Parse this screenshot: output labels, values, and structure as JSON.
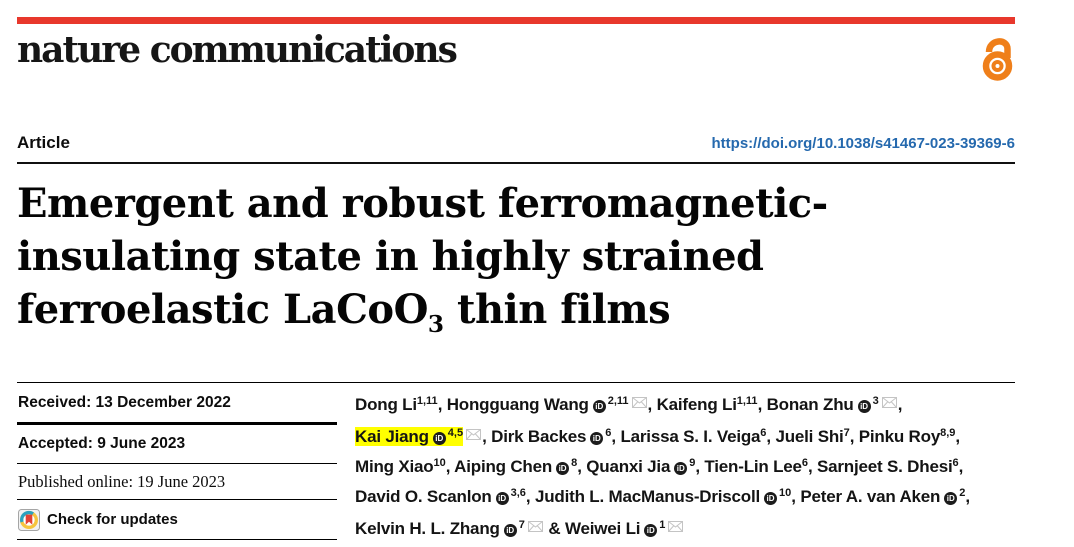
{
  "header": {
    "journal": "nature communications",
    "open_access_icon": "open-padlock",
    "article_label": "Article",
    "doi": "https://doi.org/10.1038/s41467-023-39369-6"
  },
  "title": {
    "line1": "Emergent and robust ferromagnetic-",
    "line2": "insulating state in highly strained",
    "line3_pre": "ferroelastic LaCoO",
    "line3_sub": "3",
    "line3_post": " thin films"
  },
  "dates": {
    "received": "Received: 13 December 2022",
    "accepted": "Accepted: 9 June 2023",
    "published": "Published online: 19 June 2023",
    "check_updates": "Check for updates"
  },
  "colors": {
    "brand_red": "#e8382c",
    "doi_blue": "#2569ae",
    "open_access_orange": "#ef7f1a",
    "highlight_yellow": "#ffff00"
  },
  "authors": {
    "lines": [
      [
        {
          "name": "Dong Li",
          "sup": "1,11",
          "sep": ", "
        },
        {
          "name": "Hongguang Wang",
          "orcid": true,
          "sup": "2,11",
          "mail": true,
          "sep": ", "
        },
        {
          "name": "Kaifeng Li",
          "sup": "1,11",
          "sep": ", "
        },
        {
          "name": "Bonan Zhu",
          "orcid": true,
          "sup": "3",
          "mail": true,
          "sep": ","
        }
      ],
      [
        {
          "name": "Kai Jiang",
          "orcid": true,
          "sup": "4,5",
          "mail": true,
          "highlight": true,
          "sep": ", "
        },
        {
          "name": "Dirk Backes",
          "orcid": true,
          "sup": "6",
          "sep": ", "
        },
        {
          "name": "Larissa S. I. Veiga",
          "sup": "6",
          "sep": ", "
        },
        {
          "name": "Jueli Shi",
          "sup": "7",
          "sep": ", "
        },
        {
          "name": "Pinku Roy",
          "sup": "8,9",
          "sep": ","
        }
      ],
      [
        {
          "name": "Ming Xiao",
          "sup": "10",
          "sep": ", "
        },
        {
          "name": "Aiping Chen",
          "orcid": true,
          "sup": "8",
          "sep": ", "
        },
        {
          "name": "Quanxi Jia",
          "orcid": true,
          "sup": "9",
          "sep": ", "
        },
        {
          "name": "Tien-Lin Lee",
          "sup": "6",
          "sep": ", "
        },
        {
          "name": "Sarnjeet S. Dhesi",
          "sup": "6",
          "sep": ","
        }
      ],
      [
        {
          "name": "David O. Scanlon",
          "orcid": true,
          "sup": "3,6",
          "sep": ", "
        },
        {
          "name": "Judith L. MacManus-Driscoll",
          "orcid": true,
          "sup": "10",
          "sep": ", "
        },
        {
          "name": "Peter A. van Aken",
          "orcid": true,
          "sup": "2",
          "sep": ","
        }
      ],
      [
        {
          "name": "Kelvin H. L. Zhang",
          "orcid": true,
          "sup": "7",
          "mail": true,
          "sep": " & "
        },
        {
          "name": "Weiwei Li",
          "orcid": true,
          "sup": "1",
          "mail": true,
          "sep": ""
        }
      ]
    ]
  }
}
